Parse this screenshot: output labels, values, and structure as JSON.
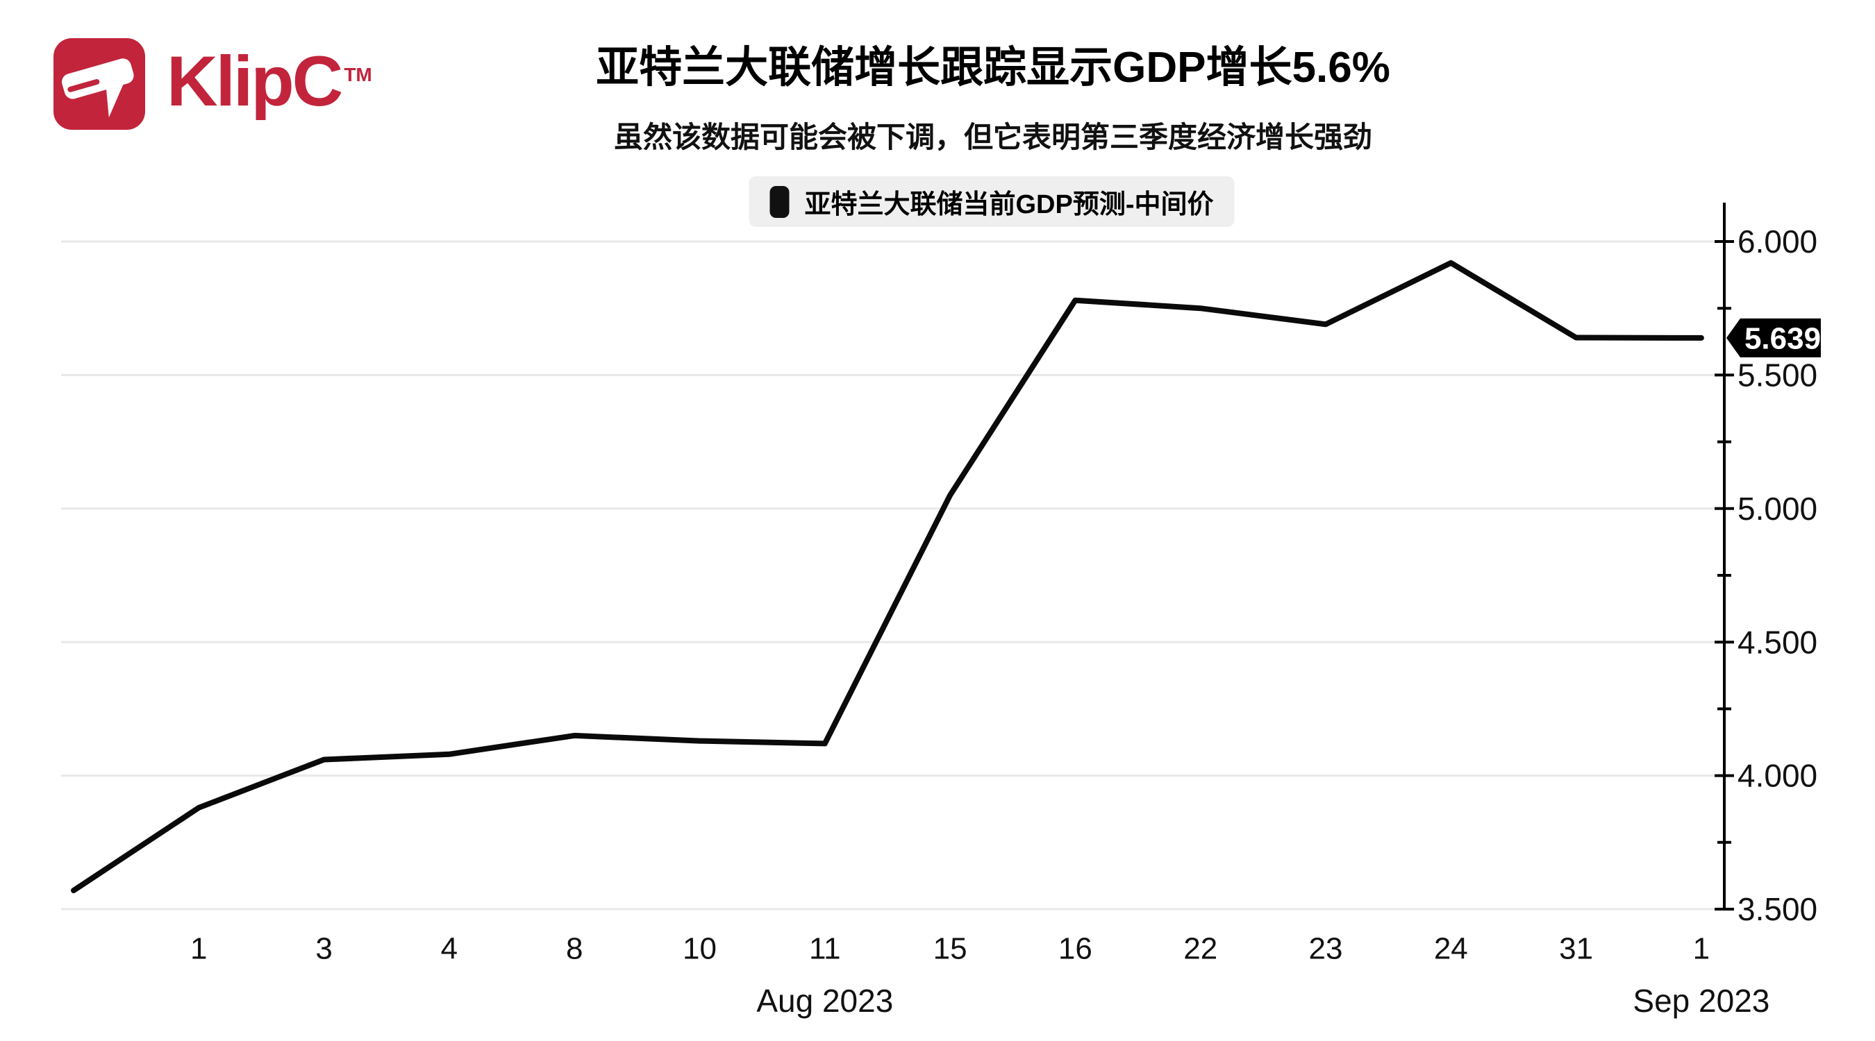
{
  "brand": {
    "name": "KlipC",
    "tm": "TM",
    "color": "#C2243C"
  },
  "header": {
    "title": "亚特兰大联储增长跟踪显示GDP增长5.6%",
    "subtitle": "虽然该数据可能会被下调，但它表明第三季度经济增长强劲"
  },
  "legend": {
    "label": "亚特兰大联储当前GDP预测-中间价",
    "swatch_color": "#111111",
    "bg_color": "#EFEFEF"
  },
  "chart_data": {
    "type": "line",
    "title": "亚特兰大联储当前GDP预测-中间价",
    "categories": [
      "",
      "1",
      "3",
      "4",
      "8",
      "10",
      "11",
      "15",
      "16",
      "22",
      "23",
      "24",
      "31",
      "1"
    ],
    "values": [
      3.57,
      3.88,
      4.06,
      4.08,
      4.15,
      4.13,
      4.12,
      5.05,
      5.78,
      5.75,
      5.69,
      5.92,
      5.64,
      5.639
    ],
    "last_value_label": "5.639",
    "xlabel": "",
    "ylabel": "",
    "ylim": [
      3.5,
      6.15
    ],
    "y_tick_labels": [
      "6.000",
      "5.500",
      "5.000",
      "4.500",
      "4.000",
      "3.500"
    ],
    "y_tick_values": [
      6.0,
      5.5,
      5.0,
      4.5,
      4.0,
      3.5
    ],
    "y_minor_tick_values": [
      5.75,
      5.25,
      4.75,
      4.25,
      3.75
    ],
    "month_labels": [
      {
        "label": "Aug 2023",
        "at_index": 6
      },
      {
        "label": "Sep 2023",
        "at_index": 13
      }
    ],
    "grid": "horizontal",
    "legend_position": "top-center",
    "line_color": "#0a0a0a",
    "grid_color": "#e8e8e8",
    "axis_color": "#000000",
    "tag_bg": "#000000",
    "tag_text_color": "#ffffff"
  }
}
